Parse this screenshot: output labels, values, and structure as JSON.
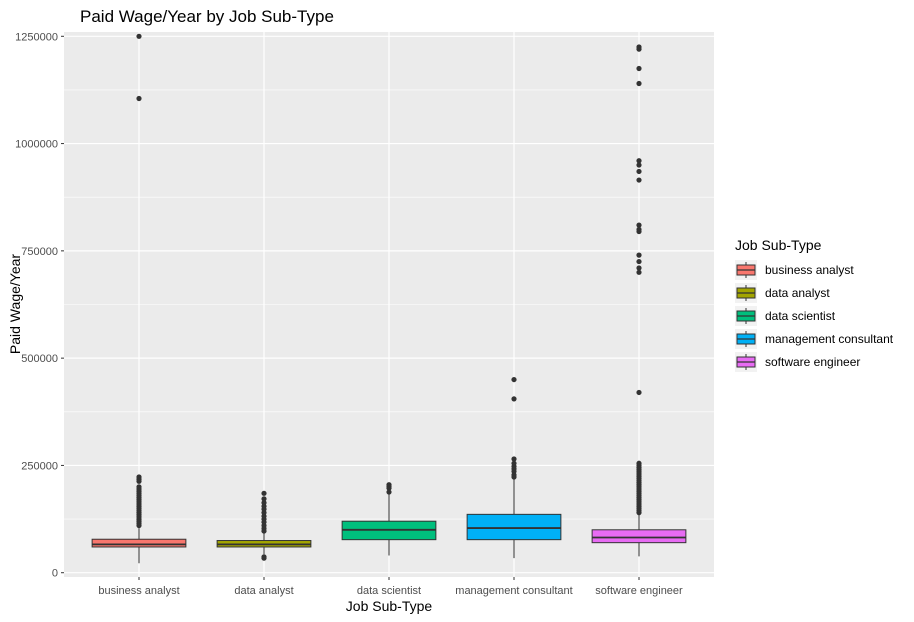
{
  "chart_data": {
    "type": "boxplot",
    "title": "Paid Wage/Year by Job Sub-Type",
    "xlabel": "Job Sub-Type",
    "ylabel": "Paid Wage/Year",
    "ylim": [
      -10000,
      1260000
    ],
    "yticks": [
      0,
      250000,
      500000,
      750000,
      1000000,
      1250000
    ],
    "ytick_labels": [
      "0",
      "250000",
      "500000",
      "750000",
      "1000000",
      "1250000"
    ],
    "grid": true,
    "legend": {
      "title": "Job Sub-Type",
      "placement": "right"
    },
    "categories": [
      "business analyst",
      "data analyst",
      "data scientist",
      "management consultant",
      "software engineer"
    ],
    "series": [
      {
        "name": "business analyst",
        "color": "#F8766D",
        "whisker_low": 22000,
        "q1": 60000,
        "median": 66000,
        "q3": 78000,
        "whisker_high": 104000,
        "outliers": [
          1250000,
          1105000,
          223000,
          218000,
          213000,
          200000,
          195000,
          190000,
          185000,
          180000,
          175000,
          170000,
          165000,
          160000,
          155000,
          150000,
          145000,
          140000,
          135000,
          130000,
          125000,
          120000,
          115000,
          110000
        ]
      },
      {
        "name": "data analyst",
        "color": "#A3A500",
        "whisker_low": 43000,
        "q1": 60000,
        "median": 66000,
        "q3": 75000,
        "whisker_high": 95000,
        "outliers": [
          185000,
          172000,
          163000,
          155000,
          148000,
          140000,
          132000,
          125000,
          118000,
          110000,
          103000,
          97000,
          37000,
          34000
        ]
      },
      {
        "name": "data scientist",
        "color": "#00BF7D",
        "whisker_low": 40000,
        "q1": 77000,
        "median": 100000,
        "q3": 120000,
        "whisker_high": 185000,
        "outliers": [
          205000,
          201000,
          197000,
          188000
        ]
      },
      {
        "name": "management consultant",
        "color": "#00B0F6",
        "whisker_low": 34000,
        "q1": 77000,
        "median": 104000,
        "q3": 136000,
        "whisker_high": 220000,
        "outliers": [
          450000,
          405000,
          265000,
          255000,
          248000,
          242000,
          236000,
          228000,
          223000
        ]
      },
      {
        "name": "software engineer",
        "color": "#E76BF3",
        "whisker_low": 38000,
        "q1": 70000,
        "median": 82000,
        "q3": 100000,
        "whisker_high": 138000,
        "outliers": [
          1225000,
          1220000,
          1175000,
          1140000,
          960000,
          950000,
          935000,
          915000,
          810000,
          800000,
          795000,
          740000,
          725000,
          710000,
          700000,
          420000,
          255000,
          250000,
          245000,
          240000,
          235000,
          230000,
          225000,
          220000,
          215000,
          210000,
          205000,
          200000,
          195000,
          190000,
          185000,
          180000,
          175000,
          170000,
          165000,
          160000,
          155000,
          150000,
          145000,
          140000
        ]
      }
    ]
  }
}
